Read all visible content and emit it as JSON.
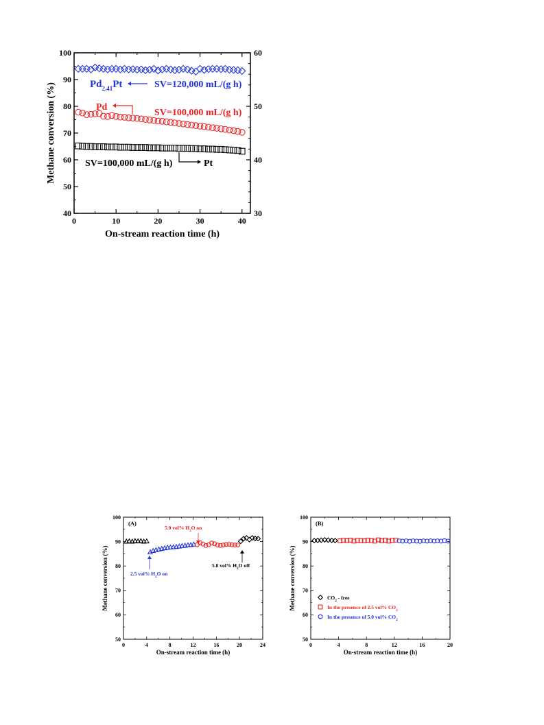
{
  "chart_data": [
    {
      "id": "top",
      "type": "scatter",
      "title": "",
      "xlabel": "On-stream reaction time (h)",
      "ylabel": "Methane conversion (%)",
      "xlim": [
        0,
        42
      ],
      "ylim": [
        40,
        100
      ],
      "y2lim": [
        30,
        60
      ],
      "xticks": [
        "0",
        "10",
        "20",
        "30",
        "40"
      ],
      "yticks": [
        "40",
        "50",
        "60",
        "70",
        "80",
        "90",
        "100"
      ],
      "y2ticks": [
        "30",
        "40",
        "50",
        "60"
      ],
      "grid": false,
      "series": [
        {
          "key": "pt",
          "marker": "square",
          "color": "#000000",
          "x": [
            1,
            2,
            3,
            4,
            5,
            6,
            7,
            8,
            9,
            10,
            11,
            12,
            13,
            14,
            15,
            16,
            17,
            18,
            19,
            20,
            21,
            22,
            23,
            24,
            25,
            26,
            27,
            28,
            29,
            30,
            31,
            32,
            33,
            34,
            35,
            36,
            37,
            38,
            39,
            40
          ],
          "y": [
            65.2,
            65.1,
            65.0,
            65.0,
            64.9,
            64.9,
            64.9,
            64.8,
            64.8,
            64.8,
            64.7,
            64.7,
            64.7,
            64.6,
            64.6,
            64.6,
            64.6,
            64.5,
            64.5,
            64.5,
            64.4,
            64.4,
            64.4,
            64.4,
            64.3,
            64.3,
            64.3,
            64.2,
            64.2,
            64.1,
            64.1,
            64.0,
            64.0,
            63.9,
            63.9,
            63.8,
            63.7,
            63.6,
            63.5,
            63.2
          ]
        },
        {
          "key": "pd",
          "marker": "circle",
          "color": "#ee2222",
          "x": [
            1,
            2,
            3,
            4,
            5,
            6,
            7,
            8,
            9,
            10,
            11,
            12,
            13,
            14,
            15,
            16,
            17,
            18,
            19,
            20,
            21,
            22,
            23,
            24,
            25,
            26,
            27,
            28,
            29,
            30,
            31,
            32,
            33,
            34,
            35,
            36,
            37,
            38,
            39,
            40
          ],
          "y": [
            77.8,
            77.5,
            76.9,
            77.0,
            77.2,
            77.3,
            76.3,
            76.2,
            76.6,
            76.2,
            76.0,
            75.9,
            75.7,
            75.6,
            75.5,
            75.3,
            75.1,
            74.9,
            74.7,
            74.5,
            74.4,
            74.2,
            74.0,
            73.8,
            73.6,
            73.4,
            73.2,
            73.0,
            72.8,
            72.6,
            72.4,
            72.2,
            72.0,
            71.8,
            71.6,
            71.4,
            71.1,
            70.9,
            70.6,
            70.3
          ]
        },
        {
          "key": "pdpt",
          "marker": "diamond",
          "color": "#2233dd",
          "x": [
            1,
            2,
            3,
            4,
            5,
            6,
            7,
            8,
            9,
            10,
            11,
            12,
            13,
            14,
            15,
            16,
            17,
            18,
            19,
            20,
            21,
            22,
            23,
            24,
            25,
            26,
            27,
            28,
            29,
            30,
            31,
            32,
            33,
            34,
            35,
            36,
            37,
            38,
            39,
            40
          ],
          "y": [
            94.0,
            94.0,
            94.0,
            93.8,
            94.5,
            94.2,
            94.0,
            93.8,
            94.0,
            94.0,
            93.8,
            94.0,
            93.8,
            93.9,
            93.7,
            93.8,
            93.5,
            93.7,
            94.0,
            93.4,
            93.8,
            94.0,
            93.8,
            93.5,
            93.7,
            94.0,
            93.8,
            93.3,
            93.0,
            94.0,
            93.6,
            93.9,
            94.0,
            94.0,
            93.9,
            94.0,
            93.7,
            93.6,
            93.5,
            93.2
          ]
        }
      ],
      "annotations": {
        "pdpt_label_main": "Pd",
        "pdpt_label_sub": "2.41",
        "pdpt_label_end": "Pt",
        "sv_blue": "SV=120,000 mL/(g h)",
        "pd_label": "Pd",
        "sv_red": "SV=100,000 mL/(g h)",
        "sv_black": "SV=100,000 mL/(g h)",
        "pt_label": "Pt"
      }
    },
    {
      "id": "A",
      "type": "scatter",
      "panel_label": "(A)",
      "xlabel": "On-stream reaction time (h)",
      "ylabel": "Methane conversion (%)",
      "xlim": [
        0,
        24
      ],
      "ylim": [
        50,
        100
      ],
      "xticks": [
        "0",
        "4",
        "8",
        "12",
        "16",
        "20",
        "24"
      ],
      "yticks": [
        "50",
        "60",
        "70",
        "80",
        "90",
        "100"
      ],
      "grid": false,
      "series": [
        {
          "key": "a_dry",
          "marker": "triangle",
          "color": "#000000",
          "x": [
            0.5,
            1.0,
            1.5,
            2.0,
            2.5,
            3.0,
            3.5,
            4.0
          ],
          "y": [
            90.0,
            90.1,
            90.0,
            90.2,
            90.1,
            90.2,
            90.0,
            90.1
          ]
        },
        {
          "key": "a_h2o25",
          "marker": "triangle",
          "color": "#2233dd",
          "x": [
            4.6,
            5.1,
            5.6,
            6.1,
            6.6,
            7.1,
            7.6,
            8.1,
            8.6,
            9.1,
            9.6,
            10.1,
            10.6,
            11.1,
            11.6,
            12.1
          ],
          "y": [
            85.6,
            86.2,
            86.5,
            86.8,
            87.0,
            87.3,
            87.5,
            87.6,
            87.7,
            87.8,
            88.0,
            88.2,
            88.3,
            88.5,
            88.6,
            88.8
          ]
        },
        {
          "key": "a_h2o50",
          "marker": "circle",
          "color": "#ee2222",
          "x": [
            12.7,
            13.2,
            13.7,
            14.2,
            14.7,
            15.2,
            15.7,
            16.2,
            16.7,
            17.2,
            17.7,
            18.2,
            18.7,
            19.2,
            19.7
          ],
          "y": [
            88.7,
            89.5,
            89.0,
            88.4,
            88.7,
            89.4,
            89.1,
            88.6,
            88.4,
            88.6,
            88.8,
            88.9,
            88.7,
            88.6,
            88.6
          ]
        },
        {
          "key": "a_off",
          "marker": "diamond",
          "color": "#000000",
          "x": [
            20.2,
            20.7,
            21.2,
            21.7,
            22.2,
            22.7,
            23.2
          ],
          "y": [
            90.1,
            91.2,
            91.5,
            90.8,
            91.5,
            91.3,
            91.2
          ]
        }
      ],
      "annotations": {
        "h2o25_on": "2.5 vol% H₂O on",
        "h2o50_on": "5.0 vol% H₂O on",
        "h2o50_off": "5.0 vol% H₂O off"
      }
    },
    {
      "id": "B",
      "type": "scatter",
      "panel_label": "(B)",
      "xlabel": "On-stream reaction time (h)",
      "ylabel": "Methane conversion (%)",
      "xlim": [
        0,
        20
      ],
      "ylim": [
        50,
        100
      ],
      "xticks": [
        "0",
        "4",
        "8",
        "12",
        "16",
        "20"
      ],
      "yticks": [
        "50",
        "60",
        "70",
        "80",
        "90",
        "100"
      ],
      "grid": false,
      "series": [
        {
          "key": "b_free",
          "name": "CO₂ - free",
          "marker": "diamond",
          "color": "#000000",
          "x": [
            0.5,
            1.0,
            1.5,
            2.0,
            2.5,
            3.0,
            3.5
          ],
          "y": [
            90.4,
            90.5,
            90.6,
            90.7,
            90.6,
            90.5,
            90.4
          ]
        },
        {
          "key": "b_co2_25",
          "name": "In the presence of 2.5 vol% CO₂",
          "marker": "square",
          "color": "#ee2222",
          "x": [
            4.2,
            4.7,
            5.2,
            5.7,
            6.2,
            6.7,
            7.2,
            7.7,
            8.2,
            8.7,
            9.2,
            9.7,
            10.2,
            10.7,
            11.2,
            11.7,
            12.2
          ],
          "y": [
            90.3,
            90.5,
            90.4,
            90.6,
            90.2,
            90.5,
            90.4,
            90.3,
            90.6,
            90.4,
            90.2,
            90.7,
            90.3,
            90.6,
            90.2,
            90.5,
            90.6
          ]
        },
        {
          "key": "b_co2_50",
          "name": "In the presence of 5.0 vol% CO₂",
          "marker": "circle",
          "color": "#2233dd",
          "x": [
            12.7,
            13.2,
            13.7,
            14.2,
            14.7,
            15.2,
            15.7,
            16.2,
            16.7,
            17.2,
            17.7,
            18.2,
            18.7,
            19.2,
            19.7
          ],
          "y": [
            90.3,
            90.2,
            90.3,
            90.1,
            90.3,
            90.2,
            90.1,
            90.3,
            90.2,
            90.3,
            90.2,
            90.3,
            90.2,
            90.4,
            90.2
          ]
        }
      ],
      "legend_position": "lower-left"
    }
  ]
}
